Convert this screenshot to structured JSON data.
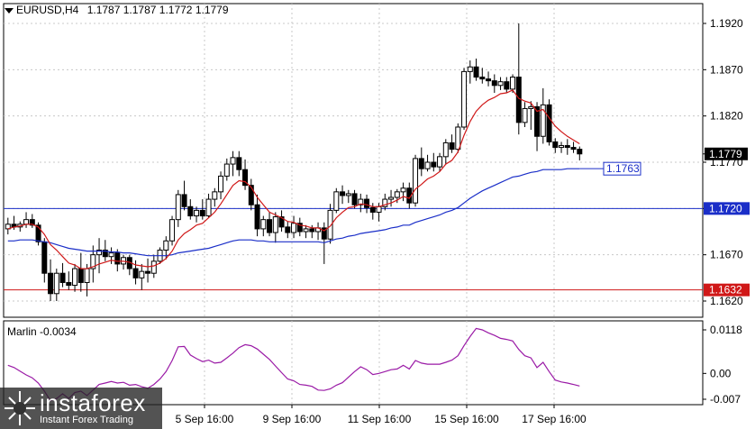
{
  "header": {
    "symbol": "EURUSD,H4",
    "quote": "1.1787 1.1787 1.1772 1.1779"
  },
  "indicator": {
    "label": "Marlin -0.0034",
    "ticks": [
      "0.0118",
      "0.00",
      "-0.007"
    ]
  },
  "logo": {
    "name": "instaforex",
    "tagline": "Instant Forex Trading"
  },
  "colors": {
    "grid": "#c8c8c8",
    "candle": "#000000",
    "ma_fast": "#d01818",
    "ma_slow": "#1a2ec8",
    "oscillator": "#9a1aa6",
    "level_blue": "#1a2ec8",
    "level_red": "#d01818"
  },
  "chart_data": {
    "type": "candlestick",
    "symbol": "EURUSD",
    "timeframe": "H4",
    "x_labels": [
      "5 Sep 16:00",
      "9 Sep 16:00",
      "11 Sep 16:00",
      "15 Sep 16:00",
      "17 Sep 16:00"
    ],
    "y_ticks": [
      "1.1920",
      "1.1870",
      "1.1820",
      "1.1770",
      "1.1720",
      "1.1670",
      "1.1620"
    ],
    "ylim": [
      1.161,
      1.194
    ],
    "current_price": "1.1779",
    "ma_label": "1.1763",
    "levels": [
      {
        "price": 1.172,
        "label": "1.1720",
        "color": "blue"
      },
      {
        "price": 1.1632,
        "label": "1.1632",
        "color": "red"
      }
    ],
    "candles": [
      [
        1.1698,
        1.171,
        1.1692,
        1.1703
      ],
      [
        1.1703,
        1.1712,
        1.1697,
        1.17
      ],
      [
        1.17,
        1.1706,
        1.1695,
        1.1703
      ],
      [
        1.1703,
        1.1716,
        1.1699,
        1.1708
      ],
      [
        1.1708,
        1.1714,
        1.1699,
        1.1702
      ],
      [
        1.1702,
        1.1705,
        1.168,
        1.1684
      ],
      [
        1.1684,
        1.1688,
        1.164,
        1.165
      ],
      [
        1.165,
        1.1665,
        1.162,
        1.1628
      ],
      [
        1.1628,
        1.1655,
        1.162,
        1.165
      ],
      [
        1.165,
        1.1661,
        1.1635,
        1.164
      ],
      [
        1.164,
        1.1652,
        1.1632,
        1.1637
      ],
      [
        1.1637,
        1.166,
        1.163,
        1.1655
      ],
      [
        1.1655,
        1.1672,
        1.163,
        1.164
      ],
      [
        1.164,
        1.166,
        1.1625,
        1.1655
      ],
      [
        1.1655,
        1.168,
        1.164,
        1.167
      ],
      [
        1.167,
        1.1688,
        1.165,
        1.1675
      ],
      [
        1.1675,
        1.1686,
        1.1663,
        1.1668
      ],
      [
        1.1668,
        1.1678,
        1.166,
        1.1672
      ],
      [
        1.1672,
        1.1676,
        1.1652,
        1.166
      ],
      [
        1.166,
        1.167,
        1.1654,
        1.1667
      ],
      [
        1.1667,
        1.167,
        1.1648,
        1.1655
      ],
      [
        1.1655,
        1.1664,
        1.1638,
        1.1645
      ],
      [
        1.1645,
        1.166,
        1.1632,
        1.1652
      ],
      [
        1.1652,
        1.1666,
        1.164,
        1.165
      ],
      [
        1.165,
        1.167,
        1.1645,
        1.1663
      ],
      [
        1.1663,
        1.1678,
        1.166,
        1.1675
      ],
      [
        1.1675,
        1.169,
        1.1665,
        1.1685
      ],
      [
        1.1685,
        1.1712,
        1.168,
        1.1708
      ],
      [
        1.1708,
        1.174,
        1.17,
        1.1735
      ],
      [
        1.1735,
        1.175,
        1.1718,
        1.1722
      ],
      [
        1.1722,
        1.173,
        1.1708,
        1.1712
      ],
      [
        1.1712,
        1.1722,
        1.1705,
        1.1718
      ],
      [
        1.1718,
        1.173,
        1.1708,
        1.1712
      ],
      [
        1.1712,
        1.1736,
        1.171,
        1.173
      ],
      [
        1.173,
        1.1742,
        1.1722,
        1.1738
      ],
      [
        1.1738,
        1.176,
        1.173,
        1.1755
      ],
      [
        1.1755,
        1.1774,
        1.175,
        1.1768
      ],
      [
        1.1768,
        1.1782,
        1.1755,
        1.1775
      ],
      [
        1.1775,
        1.1782,
        1.1755,
        1.1762
      ],
      [
        1.1762,
        1.1773,
        1.174,
        1.1745
      ],
      [
        1.1745,
        1.1752,
        1.1718,
        1.1724
      ],
      [
        1.1724,
        1.1735,
        1.169,
        1.1698
      ],
      [
        1.1698,
        1.1712,
        1.169,
        1.1708
      ],
      [
        1.1708,
        1.1716,
        1.169,
        1.1694
      ],
      [
        1.1694,
        1.1716,
        1.1683,
        1.1711
      ],
      [
        1.1711,
        1.1718,
        1.1695,
        1.17
      ],
      [
        1.17,
        1.1706,
        1.1688,
        1.1694
      ],
      [
        1.1694,
        1.1712,
        1.1688,
        1.1704
      ],
      [
        1.1704,
        1.171,
        1.169,
        1.1695
      ],
      [
        1.1695,
        1.1702,
        1.1688,
        1.1698
      ],
      [
        1.1698,
        1.1702,
        1.1688,
        1.1695
      ],
      [
        1.1695,
        1.1705,
        1.1686,
        1.1699
      ],
      [
        1.1699,
        1.1705,
        1.166,
        1.1687
      ],
      [
        1.1687,
        1.1725,
        1.1682,
        1.1718
      ],
      [
        1.1718,
        1.1742,
        1.1715,
        1.1738
      ],
      [
        1.1738,
        1.1745,
        1.1725,
        1.1734
      ],
      [
        1.1734,
        1.174,
        1.1726,
        1.1736
      ],
      [
        1.1736,
        1.174,
        1.172,
        1.1724
      ],
      [
        1.1724,
        1.1736,
        1.1716,
        1.173
      ],
      [
        1.173,
        1.1735,
        1.1715,
        1.1721
      ],
      [
        1.1721,
        1.1726,
        1.1708,
        1.1716
      ],
      [
        1.1716,
        1.1726,
        1.1706,
        1.1722
      ],
      [
        1.1722,
        1.1736,
        1.1718,
        1.173
      ],
      [
        1.173,
        1.174,
        1.1722,
        1.1732
      ],
      [
        1.1732,
        1.1741,
        1.1726,
        1.1738
      ],
      [
        1.1738,
        1.1748,
        1.1728,
        1.1742
      ],
      [
        1.1742,
        1.1748,
        1.172,
        1.1726
      ],
      [
        1.1726,
        1.1778,
        1.1722,
        1.1774
      ],
      [
        1.1774,
        1.1786,
        1.1755,
        1.1763
      ],
      [
        1.1763,
        1.1778,
        1.176,
        1.177
      ],
      [
        1.177,
        1.178,
        1.176,
        1.1765
      ],
      [
        1.1765,
        1.178,
        1.176,
        1.1776
      ],
      [
        1.1776,
        1.1795,
        1.1768,
        1.1791
      ],
      [
        1.1791,
        1.18,
        1.178,
        1.1784
      ],
      [
        1.1784,
        1.1812,
        1.178,
        1.1808
      ],
      [
        1.1808,
        1.1872,
        1.1805,
        1.1868
      ],
      [
        1.1868,
        1.188,
        1.1855,
        1.1873
      ],
      [
        1.1873,
        1.1882,
        1.1858,
        1.1862
      ],
      [
        1.1862,
        1.1872,
        1.1855,
        1.186
      ],
      [
        1.186,
        1.1868,
        1.1852,
        1.1858
      ],
      [
        1.1858,
        1.1865,
        1.1845,
        1.1853
      ],
      [
        1.1853,
        1.1862,
        1.1848,
        1.1857
      ],
      [
        1.1857,
        1.1862,
        1.1845,
        1.1849
      ],
      [
        1.1849,
        1.1865,
        1.1845,
        1.1862
      ],
      [
        1.1862,
        1.192,
        1.18,
        1.1813
      ],
      [
        1.1813,
        1.1835,
        1.1808,
        1.1828
      ],
      [
        1.1828,
        1.1836,
        1.1805,
        1.183
      ],
      [
        1.183,
        1.1835,
        1.1782,
        1.1798
      ],
      [
        1.1798,
        1.185,
        1.179,
        1.1832
      ],
      [
        1.1832,
        1.1838,
        1.1788,
        1.1792
      ],
      [
        1.1792,
        1.1796,
        1.178,
        1.1786
      ],
      [
        1.1786,
        1.1792,
        1.178,
        1.1788
      ],
      [
        1.1788,
        1.1795,
        1.1778,
        1.1786
      ],
      [
        1.1786,
        1.1792,
        1.178,
        1.1784
      ],
      [
        1.1784,
        1.1787,
        1.1772,
        1.1779
      ]
    ],
    "ma_fast": [
      1.1698,
      1.17,
      1.1701,
      1.1703,
      1.1703,
      1.17,
      1.1692,
      1.1681,
      1.1675,
      1.1668,
      1.1661,
      1.1659,
      1.1655,
      1.1655,
      1.1657,
      1.166,
      1.1662,
      1.1664,
      1.1663,
      1.1663,
      1.1662,
      1.1659,
      1.1658,
      1.1657,
      1.1658,
      1.1661,
      1.1666,
      1.1674,
      1.1686,
      1.1693,
      1.1697,
      1.1702,
      1.1704,
      1.171,
      1.1716,
      1.1725,
      1.1735,
      1.1745,
      1.175,
      1.1749,
      1.1743,
      1.1732,
      1.1724,
      1.1716,
      1.1713,
      1.171,
      1.1706,
      1.1705,
      1.1702,
      1.1701,
      1.1699,
      1.1699,
      1.1696,
      1.1701,
      1.171,
      1.1716,
      1.1721,
      1.1722,
      1.1725,
      1.1724,
      1.1722,
      1.1722,
      1.1724,
      1.1726,
      1.1729,
      1.1733,
      1.1731,
      1.1741,
      1.1746,
      1.1752,
      1.1755,
      1.176,
      1.1768,
      1.1772,
      1.1781,
      1.1799,
      1.1814,
      1.1825,
      1.1832,
      1.1837,
      1.184,
      1.1844,
      1.1845,
      1.1848,
      1.1839,
      1.1836,
      1.1834,
      1.1825,
      1.1827,
      1.1818,
      1.1809,
      1.1803,
      1.1798,
      1.1794,
      1.179
    ],
    "ma_slow": [
      1.1685,
      1.1685,
      1.1686,
      1.1686,
      1.1686,
      1.1685,
      1.1684,
      1.1683,
      1.1681,
      1.1679,
      1.1677,
      1.1676,
      1.1675,
      1.1674,
      1.1674,
      1.1674,
      1.1674,
      1.1673,
      1.1673,
      1.1672,
      1.1672,
      1.1671,
      1.167,
      1.1669,
      1.1669,
      1.1669,
      1.1669,
      1.167,
      1.1672,
      1.1673,
      1.1674,
      1.1675,
      1.1676,
      1.1677,
      1.1679,
      1.1681,
      1.1683,
      1.1685,
      1.1686,
      1.1686,
      1.1686,
      1.1685,
      1.1685,
      1.1684,
      1.1684,
      1.1684,
      1.1684,
      1.1684,
      1.1684,
      1.1684,
      1.1684,
      1.1684,
      1.1683,
      1.1685,
      1.1687,
      1.1688,
      1.169,
      1.1691,
      1.1693,
      1.1694,
      1.1695,
      1.1696,
      1.1697,
      1.1699,
      1.17,
      1.1702,
      1.1702,
      1.1705,
      1.1707,
      1.1709,
      1.1711,
      1.1713,
      1.1716,
      1.1718,
      1.1721,
      1.1726,
      1.1731,
      1.1735,
      1.1739,
      1.1742,
      1.1745,
      1.1748,
      1.1751,
      1.1754,
      1.1755,
      1.1757,
      1.1759,
      1.176,
      1.1762,
      1.1762,
      1.1762,
      1.1762,
      1.1763,
      1.1763,
      1.1763
    ],
    "oscillator": {
      "label": "Marlin",
      "value": "-0.0034",
      "ylim": [
        -0.011,
        0.0135
      ],
      "values": [
        0.0022,
        0.0016,
        0.0006,
        -0.0004,
        -0.0012,
        -0.0026,
        -0.0048,
        -0.0074,
        -0.0068,
        -0.0055,
        -0.0068,
        -0.0052,
        -0.0048,
        -0.006,
        -0.0045,
        -0.003,
        -0.0026,
        -0.0022,
        -0.0026,
        -0.0024,
        -0.0032,
        -0.003,
        -0.0036,
        -0.004,
        -0.003,
        -0.0015,
        0.0005,
        0.0035,
        0.0072,
        0.0073,
        0.005,
        0.004,
        0.0032,
        0.0036,
        0.0028,
        0.003,
        0.0042,
        0.0055,
        0.007,
        0.0078,
        0.0075,
        0.0066,
        0.0052,
        0.0038,
        0.002,
        0.0002,
        -0.0015,
        -0.002,
        -0.003,
        -0.0032,
        -0.0035,
        -0.0045,
        -0.0046,
        -0.0042,
        -0.0032,
        -0.0025,
        -0.001,
        0.0005,
        0.0018,
        0.001,
        -0.0003,
        0.0,
        0.0005,
        0.001,
        0.0012,
        0.0022,
        0.0012,
        0.0035,
        0.0028,
        0.0025,
        0.0025,
        0.0025,
        0.003,
        0.0036,
        0.0048,
        0.0075,
        0.01,
        0.0122,
        0.0118,
        0.011,
        0.0103,
        0.0095,
        0.0092,
        0.0088,
        0.0065,
        0.0048,
        0.0042,
        0.0016,
        0.003,
        0.0005,
        -0.0018,
        -0.0023,
        -0.0026,
        -0.003,
        -0.0034
      ]
    }
  }
}
